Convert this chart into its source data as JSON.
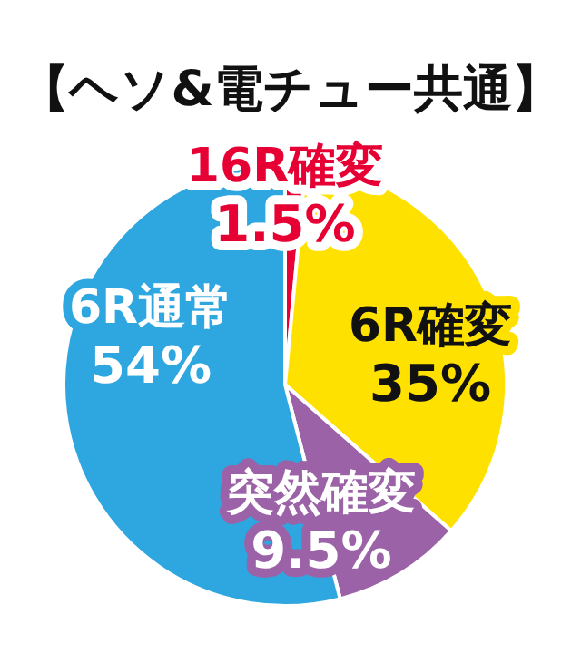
{
  "chart_data": {
    "type": "pie",
    "title": "【ヘソ&電チュー共通】",
    "categories": [
      "16R確変",
      "6R確変",
      "突然確変",
      "6R通常"
    ],
    "values": [
      1.5,
      35,
      9.5,
      54
    ],
    "value_labels": [
      "1.5%",
      "35%",
      "9.5%",
      "54%"
    ],
    "colors": [
      "#e60033",
      "#ffe100",
      "#9b62a7",
      "#2ea6df"
    ],
    "legend": false
  }
}
